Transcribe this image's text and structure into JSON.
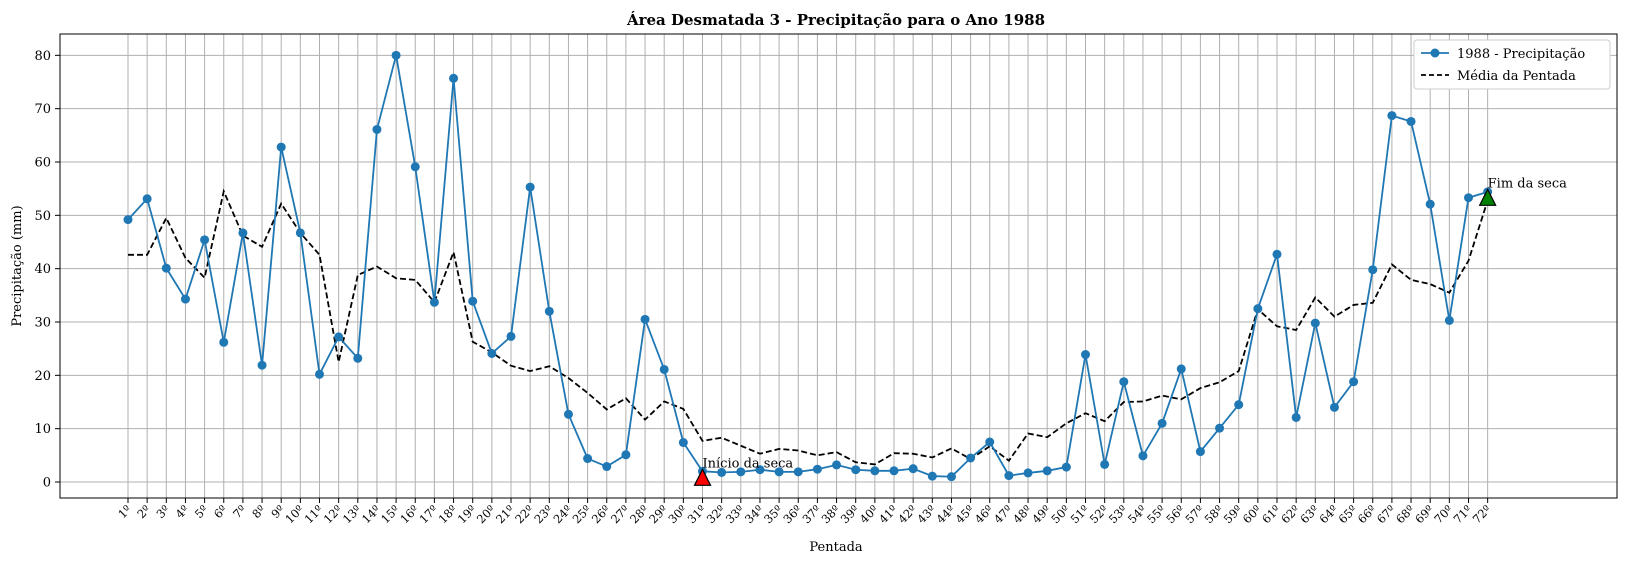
{
  "chart_data": {
    "type": "line",
    "title": "Área Desmatada 3 - Precipitação para o Ano 1988",
    "xlabel": "Pentada",
    "ylabel": "Precipitação (mm)",
    "ylim": [
      -3,
      84
    ],
    "yticks": [
      0,
      10,
      20,
      30,
      40,
      50,
      60,
      70,
      80
    ],
    "grid": true,
    "legend_position": "top-right",
    "categories": [
      "1º",
      "2º",
      "3º",
      "4º",
      "5º",
      "6º",
      "7º",
      "8º",
      "9º",
      "10º",
      "11º",
      "12º",
      "13º",
      "14º",
      "15º",
      "16º",
      "17º",
      "18º",
      "19º",
      "20º",
      "21º",
      "22º",
      "23º",
      "24º",
      "25º",
      "26º",
      "27º",
      "28º",
      "29º",
      "30º",
      "31º",
      "32º",
      "33º",
      "34º",
      "35º",
      "36º",
      "37º",
      "38º",
      "39º",
      "40º",
      "41º",
      "42º",
      "43º",
      "44º",
      "45º",
      "46º",
      "47º",
      "48º",
      "49º",
      "50º",
      "51º",
      "52º",
      "53º",
      "54º",
      "55º",
      "56º",
      "57º",
      "58º",
      "59º",
      "60º",
      "61º",
      "62º",
      "63º",
      "64º",
      "65º",
      "66º",
      "67º",
      "68º",
      "69º",
      "70º",
      "71º",
      "72º"
    ],
    "series": [
      {
        "name": "1988 - Precipitação",
        "color": "#1f77b4",
        "style": "solid-with-markers",
        "values": [
          49.2,
          53.1,
          40.1,
          34.3,
          45.4,
          26.2,
          46.7,
          21.9,
          62.8,
          46.7,
          20.2,
          27.2,
          23.2,
          66.1,
          80.0,
          59.1,
          33.7,
          75.7,
          33.9,
          24.1,
          27.3,
          55.3,
          32.0,
          12.7,
          4.4,
          2.9,
          5.1,
          30.5,
          21.1,
          7.4,
          2.0,
          1.8,
          1.9,
          2.3,
          1.9,
          1.9,
          2.4,
          3.2,
          2.3,
          2.1,
          2.1,
          2.5,
          1.1,
          1.0,
          4.5,
          7.5,
          1.2,
          1.7,
          2.1,
          2.8,
          23.9,
          3.3,
          18.8,
          4.9,
          11.0,
          21.2,
          5.7,
          10.1,
          14.5,
          32.5,
          42.7,
          12.1,
          29.8,
          14.0,
          18.8,
          39.8,
          68.7,
          67.6,
          52.1,
          30.3,
          53.3,
          54.4
        ]
      },
      {
        "name": "Média da Pentada",
        "color": "#000000",
        "style": "dashed",
        "values": [
          42.6,
          42.6,
          49.5,
          42.0,
          38.3,
          54.5,
          46.2,
          44.1,
          52.2,
          46.7,
          42.6,
          22.5,
          38.8,
          40.4,
          38.2,
          37.9,
          33.7,
          43.1,
          26.3,
          24.3,
          21.8,
          20.8,
          21.7,
          19.5,
          16.7,
          13.6,
          15.7,
          11.7,
          15.1,
          13.7,
          7.7,
          8.3,
          6.8,
          5.3,
          6.2,
          5.9,
          5.0,
          5.6,
          3.7,
          3.3,
          5.4,
          5.3,
          4.6,
          6.3,
          4.3,
          6.7,
          4.0,
          9.1,
          8.4,
          11.0,
          12.9,
          11.4,
          15.0,
          15.1,
          16.2,
          15.5,
          17.6,
          18.7,
          20.8,
          32.4,
          29.2,
          28.5,
          34.6,
          31.0,
          33.2,
          33.6,
          40.8,
          37.9,
          37.1,
          35.5,
          41.5,
          52.8
        ]
      }
    ],
    "annotations": [
      {
        "text": "Início da seca",
        "x": "31º",
        "y": 0.5,
        "marker": "triangle",
        "color": "#ff0000"
      },
      {
        "text": "Fim da seca",
        "x": "72º",
        "y": 53,
        "marker": "triangle",
        "color": "#008000"
      }
    ]
  }
}
